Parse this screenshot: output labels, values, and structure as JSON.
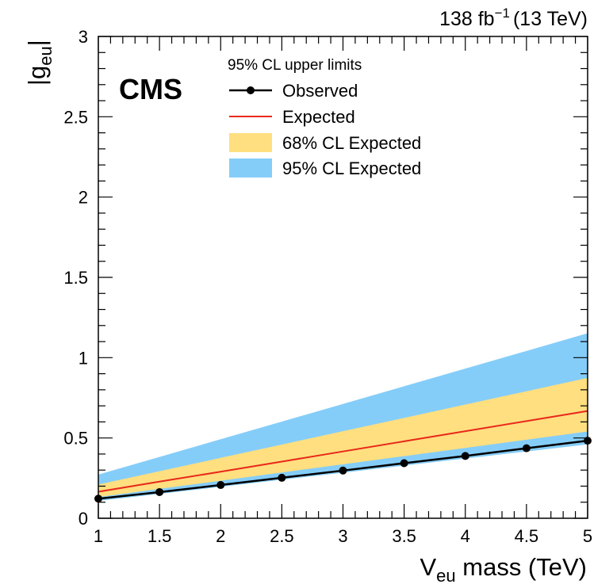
{
  "chart_data": {
    "type": "line",
    "title": "",
    "experiment_label": "CMS",
    "lumi_label": {
      "value": "138 fb",
      "exponent": "−1",
      "energy": "(13 TeV)"
    },
    "xlabel": {
      "main": "V",
      "sub": "eu",
      "rest": " mass (TeV)"
    },
    "ylabel": {
      "pre": "|g",
      "sub": "eu",
      "post": "|"
    },
    "xlim": [
      1,
      5
    ],
    "ylim": [
      0,
      3
    ],
    "x_ticks": [
      "1",
      "1.5",
      "2",
      "2.5",
      "3",
      "3.5",
      "4",
      "4.5",
      "5"
    ],
    "y_ticks": [
      "0",
      "0.5",
      "1",
      "1.5",
      "2",
      "2.5",
      "3"
    ],
    "legend": {
      "title": "95% CL upper limits",
      "placement": "top-center",
      "entries": [
        {
          "label": "Observed",
          "kind": "marker-line"
        },
        {
          "label": "Expected",
          "kind": "line"
        },
        {
          "label": "68% CL Expected",
          "kind": "band68"
        },
        {
          "label": "95% CL Expected",
          "kind": "band95"
        }
      ]
    },
    "colors": {
      "observed": "#000000",
      "expected": "#e8281c",
      "band68": "#ffdf7f",
      "band95": "#85cdf9"
    },
    "x": [
      1,
      1.5,
      2,
      2.5,
      3,
      3.5,
      4,
      4.5,
      5
    ],
    "series": [
      {
        "name": "Observed",
        "values": [
          0.122,
          0.163,
          0.207,
          0.252,
          0.297,
          0.343,
          0.388,
          0.436,
          0.483
        ]
      },
      {
        "name": "Expected",
        "values": [
          0.165,
          0.228,
          0.29,
          0.353,
          0.416,
          0.479,
          0.542,
          0.605,
          0.668
        ]
      }
    ],
    "bands": [
      {
        "name": "95% CL Expected",
        "low": [
          0.108,
          0.152,
          0.196,
          0.24,
          0.284,
          0.328,
          0.372,
          0.416,
          0.46
        ],
        "high": [
          0.272,
          0.382,
          0.492,
          0.602,
          0.712,
          0.822,
          0.932,
          1.042,
          1.152
        ]
      },
      {
        "name": "68% CL Expected",
        "low": [
          0.132,
          0.183,
          0.234,
          0.285,
          0.336,
          0.387,
          0.438,
          0.489,
          0.54
        ],
        "high": [
          0.21,
          0.293,
          0.376,
          0.459,
          0.542,
          0.625,
          0.708,
          0.791,
          0.874
        ]
      }
    ]
  }
}
